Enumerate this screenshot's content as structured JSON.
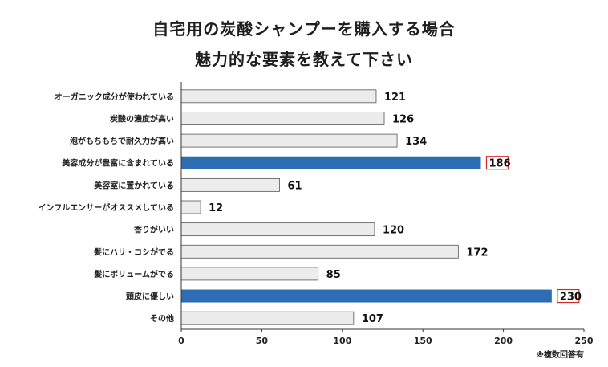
{
  "title_line1": "自宅用の炭酸シャンプーを購入する場合",
  "title_line2": "魅力的な要素を教えて下さい",
  "footnote": "※複数回答有",
  "colors": {
    "default_bar": "#ececec",
    "default_bar_border": "#555555",
    "highlight_bar": "#2e6db4",
    "highlight_label_border": "#d22a2a",
    "axis": "#333333"
  },
  "chart_data": {
    "type": "bar",
    "orientation": "horizontal",
    "categories": [
      "オーガニック成分が使われている",
      "炭酸の濃度が高い",
      "泡がもちもちで耐久力が高い",
      "美容成分が豊富に含まれている",
      "美容室に置かれている",
      "インフルエンサーがオススメしている",
      "香りがいい",
      "髪にハリ・コシがでる",
      "髪にボリュームがでる",
      "頭皮に優しい",
      "その他"
    ],
    "values": [
      121,
      126,
      134,
      186,
      61,
      12,
      120,
      172,
      85,
      230,
      107
    ],
    "highlighted": [
      false,
      false,
      false,
      true,
      false,
      false,
      false,
      false,
      false,
      true,
      false
    ],
    "xlim": [
      0,
      250
    ],
    "xticks": [
      0,
      50,
      100,
      150,
      200,
      250
    ],
    "xlabel": "",
    "ylabel": "",
    "grid": false
  }
}
